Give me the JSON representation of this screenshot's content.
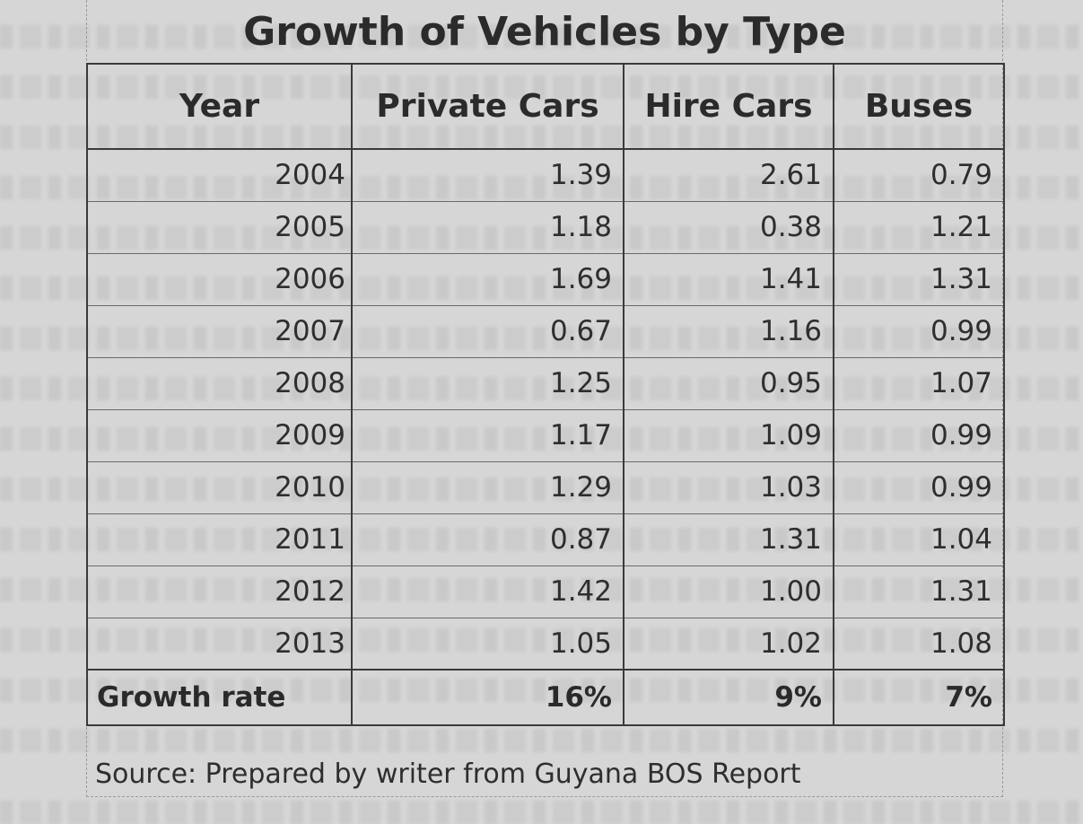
{
  "title": "Growth of Vehicles by Type",
  "table": {
    "headers": [
      "Year",
      "Private Cars",
      "Hire Cars",
      "Buses"
    ],
    "rows": [
      [
        "2004",
        "1.39",
        "2.61",
        "0.79"
      ],
      [
        "2005",
        "1.18",
        "0.38",
        "1.21"
      ],
      [
        "2006",
        "1.69",
        "1.41",
        "1.31"
      ],
      [
        "2007",
        "0.67",
        "1.16",
        "0.99"
      ],
      [
        "2008",
        "1.25",
        "0.95",
        "1.07"
      ],
      [
        "2009",
        "1.17",
        "1.09",
        "0.99"
      ],
      [
        "2010",
        "1.29",
        "1.03",
        "0.99"
      ],
      [
        "2011",
        "0.87",
        "1.31",
        "1.04"
      ],
      [
        "2012",
        "1.42",
        "1.00",
        "1.31"
      ],
      [
        "2013",
        "1.05",
        "1.02",
        "1.08"
      ]
    ],
    "footer": [
      "Growth rate",
      "16%",
      "9%",
      "7%"
    ]
  },
  "source": "Source: Prepared by writer from Guyana BOS Report"
}
